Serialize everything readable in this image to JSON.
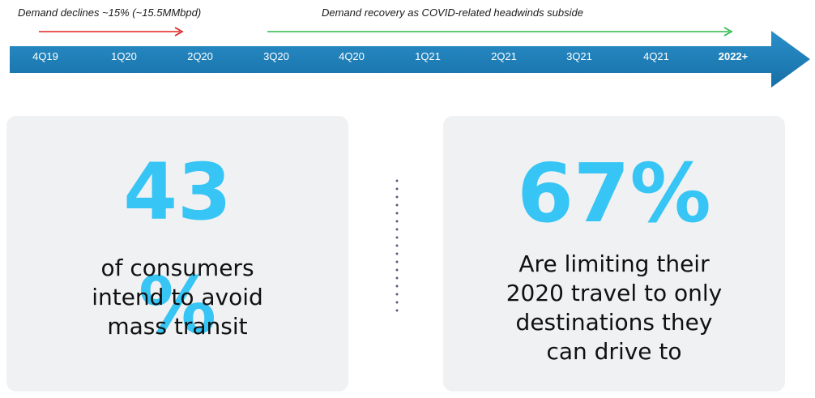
{
  "timeline": {
    "annotations": {
      "decline": "Demand declines ~15% (~15.5MMbpd)",
      "recovery": "Demand recovery as COVID-related headwinds subside"
    },
    "labels": [
      "4Q19",
      "1Q20",
      "2Q20",
      "3Q20",
      "4Q20",
      "1Q21",
      "2Q21",
      "3Q21",
      "4Q21",
      "2022+"
    ],
    "colors": {
      "bar": "#1f7fb8",
      "decline_arrow": "#e02020",
      "recovery_arrow": "#2db84a"
    }
  },
  "stats": [
    {
      "big_text": "43",
      "big_suffix": "%",
      "description_lines": [
        "of consumers",
        "intend to avoid",
        "mass transit"
      ]
    },
    {
      "big_text": "67%",
      "description_lines": [
        "Are limiting their",
        "2020 travel to only",
        "destinations they",
        "can drive to"
      ]
    }
  ],
  "colors": {
    "stat_accent": "#36c5f4",
    "card_background": "#f0f1f3",
    "divider": "#555a75"
  }
}
